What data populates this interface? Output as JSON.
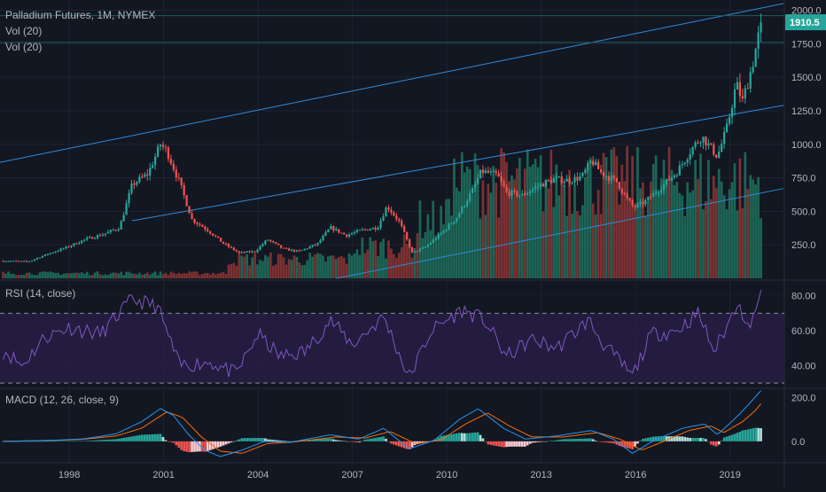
{
  "chart_data": [
    {
      "panel": "price",
      "type": "candlestick",
      "title": "Palladium Futures, 1M, NYMEX",
      "indicators": [
        "Vol (20)",
        "Vol (20)"
      ],
      "ylim": [
        0,
        2050
      ],
      "y_ticks": [
        "2000.0",
        "1750.0",
        "1500.0",
        "1250.0",
        "1000.0",
        "750.0",
        "500.0",
        "250.0"
      ],
      "y_tick_values": [
        2000,
        1750,
        1500,
        1250,
        1000,
        750,
        500,
        250
      ],
      "last_price": "1910.5",
      "last_price_value": 1910.5,
      "x_ticks": [
        "1998",
        "2001",
        "2004",
        "2007",
        "2010",
        "2013",
        "2016",
        "2019"
      ],
      "x_tick_years": [
        1998,
        2001,
        2004,
        2007,
        2010,
        2013,
        2016,
        2019
      ],
      "x_range_years": [
        1995.8,
        2020.7
      ],
      "price_anchors": [
        [
          1996.0,
          130
        ],
        [
          1996.7,
          125
        ],
        [
          1997.3,
          180
        ],
        [
          1997.9,
          230
        ],
        [
          1998.5,
          290
        ],
        [
          1999.1,
          330
        ],
        [
          1999.6,
          380
        ],
        [
          2000.0,
          700
        ],
        [
          2000.5,
          780
        ],
        [
          2000.9,
          1000
        ],
        [
          2001.1,
          950
        ],
        [
          2001.5,
          720
        ],
        [
          2001.9,
          440
        ],
        [
          2002.4,
          360
        ],
        [
          2002.9,
          260
        ],
        [
          2003.4,
          190
        ],
        [
          2003.9,
          200
        ],
        [
          2004.3,
          290
        ],
        [
          2004.8,
          220
        ],
        [
          2005.3,
          200
        ],
        [
          2005.9,
          260
        ],
        [
          2006.3,
          380
        ],
        [
          2006.8,
          320
        ],
        [
          2007.3,
          360
        ],
        [
          2007.8,
          380
        ],
        [
          2008.1,
          540
        ],
        [
          2008.5,
          420
        ],
        [
          2008.9,
          190
        ],
        [
          2009.3,
          230
        ],
        [
          2009.8,
          330
        ],
        [
          2010.3,
          450
        ],
        [
          2010.8,
          650
        ],
        [
          2011.1,
          800
        ],
        [
          2011.6,
          770
        ],
        [
          2011.9,
          640
        ],
        [
          2012.4,
          620
        ],
        [
          2012.9,
          690
        ],
        [
          2013.4,
          740
        ],
        [
          2013.9,
          730
        ],
        [
          2014.3,
          760
        ],
        [
          2014.6,
          880
        ],
        [
          2014.9,
          790
        ],
        [
          2015.4,
          720
        ],
        [
          2015.7,
          600
        ],
        [
          2015.95,
          530
        ],
        [
          2016.3,
          570
        ],
        [
          2016.8,
          680
        ],
        [
          2017.3,
          790
        ],
        [
          2017.8,
          970
        ],
        [
          2018.1,
          1060
        ],
        [
          2018.6,
          910
        ],
        [
          2018.9,
          1120
        ],
        [
          2019.2,
          1450
        ],
        [
          2019.4,
          1320
        ],
        [
          2019.7,
          1580
        ],
        [
          2020.0,
          1910
        ]
      ]
    },
    {
      "panel": "rsi",
      "type": "line",
      "label": "RSI (14, close)",
      "ylim": [
        28,
        88
      ],
      "y_ticks": [
        "80.00",
        "60.00",
        "40.00"
      ],
      "y_tick_values": [
        80,
        60,
        40
      ],
      "bands": [
        70,
        30
      ],
      "anchors": [
        [
          1996.0,
          48
        ],
        [
          1996.5,
          40
        ],
        [
          1997.2,
          56
        ],
        [
          1998.0,
          62
        ],
        [
          1999.0,
          58
        ],
        [
          2000.0,
          78
        ],
        [
          2000.8,
          74
        ],
        [
          2001.5,
          40
        ],
        [
          2002.5,
          42
        ],
        [
          2003.3,
          35
        ],
        [
          2004.0,
          58
        ],
        [
          2004.7,
          45
        ],
        [
          2005.5,
          48
        ],
        [
          2006.3,
          66
        ],
        [
          2007.0,
          52
        ],
        [
          2008.0,
          68
        ],
        [
          2008.8,
          33
        ],
        [
          2009.5,
          60
        ],
        [
          2010.5,
          72
        ],
        [
          2011.2,
          66
        ],
        [
          2011.9,
          45
        ],
        [
          2012.7,
          55
        ],
        [
          2013.5,
          50
        ],
        [
          2014.5,
          66
        ],
        [
          2015.0,
          52
        ],
        [
          2015.9,
          34
        ],
        [
          2016.5,
          58
        ],
        [
          2017.3,
          60
        ],
        [
          2018.0,
          70
        ],
        [
          2018.5,
          48
        ],
        [
          2019.0,
          66
        ],
        [
          2019.3,
          80
        ],
        [
          2019.5,
          60
        ],
        [
          2020.0,
          80
        ]
      ]
    },
    {
      "panel": "macd",
      "type": "line",
      "label": "MACD (12, 26, close, 9)",
      "ylim": [
        -90,
        235
      ],
      "y_ticks": [
        "200.0",
        "0.0"
      ],
      "y_tick_values": [
        200,
        0
      ],
      "macd_anchors": [
        [
          1996.0,
          0
        ],
        [
          1997.5,
          5
        ],
        [
          1998.5,
          12
        ],
        [
          1999.5,
          35
        ],
        [
          2000.3,
          90
        ],
        [
          2000.9,
          150
        ],
        [
          2001.3,
          120
        ],
        [
          2001.8,
          30
        ],
        [
          2002.3,
          -40
        ],
        [
          2002.8,
          -70
        ],
        [
          2003.5,
          -40
        ],
        [
          2004.2,
          0
        ],
        [
          2005.0,
          -5
        ],
        [
          2006.3,
          30
        ],
        [
          2007.2,
          10
        ],
        [
          2008.0,
          60
        ],
        [
          2008.8,
          -35
        ],
        [
          2009.6,
          5
        ],
        [
          2010.4,
          100
        ],
        [
          2011.0,
          150
        ],
        [
          2011.8,
          60
        ],
        [
          2012.5,
          10
        ],
        [
          2013.5,
          25
        ],
        [
          2014.6,
          50
        ],
        [
          2015.3,
          10
        ],
        [
          2015.9,
          -55
        ],
        [
          2016.6,
          5
        ],
        [
          2017.5,
          60
        ],
        [
          2018.2,
          80
        ],
        [
          2018.6,
          30
        ],
        [
          2019.2,
          110
        ],
        [
          2019.6,
          170
        ],
        [
          2020.0,
          235
        ]
      ],
      "signal_anchors": [
        [
          1996.0,
          0
        ],
        [
          1997.5,
          4
        ],
        [
          1998.5,
          10
        ],
        [
          1999.5,
          25
        ],
        [
          2000.3,
          60
        ],
        [
          2001.1,
          135
        ],
        [
          2001.6,
          110
        ],
        [
          2002.2,
          20
        ],
        [
          2002.8,
          -45
        ],
        [
          2003.5,
          -55
        ],
        [
          2004.3,
          -10
        ],
        [
          2005.0,
          -5
        ],
        [
          2006.5,
          20
        ],
        [
          2007.4,
          15
        ],
        [
          2008.2,
          45
        ],
        [
          2009.0,
          -10
        ],
        [
          2009.8,
          5
        ],
        [
          2010.6,
          80
        ],
        [
          2011.3,
          130
        ],
        [
          2012.0,
          70
        ],
        [
          2012.7,
          20
        ],
        [
          2013.7,
          20
        ],
        [
          2014.8,
          40
        ],
        [
          2015.5,
          10
        ],
        [
          2016.2,
          -40
        ],
        [
          2016.9,
          0
        ],
        [
          2017.7,
          50
        ],
        [
          2018.4,
          70
        ],
        [
          2018.8,
          40
        ],
        [
          2019.4,
          90
        ],
        [
          2019.8,
          140
        ],
        [
          2020.0,
          175
        ]
      ]
    }
  ],
  "colors": {
    "background": "#131722",
    "grid": "#1f2330",
    "text": "#b2b5be",
    "up": "#26a69a",
    "down": "#ef5350",
    "vol_up": "#1e6f5c",
    "vol_down": "#8a3434",
    "trendline": "#2f8bd8",
    "last_price_bg": "#26a69a",
    "rsi_line": "#7e57c2",
    "rsi_band_fill": "#2a1f4a",
    "macd_line": "#2196f3",
    "signal_line": "#ff6d00"
  }
}
